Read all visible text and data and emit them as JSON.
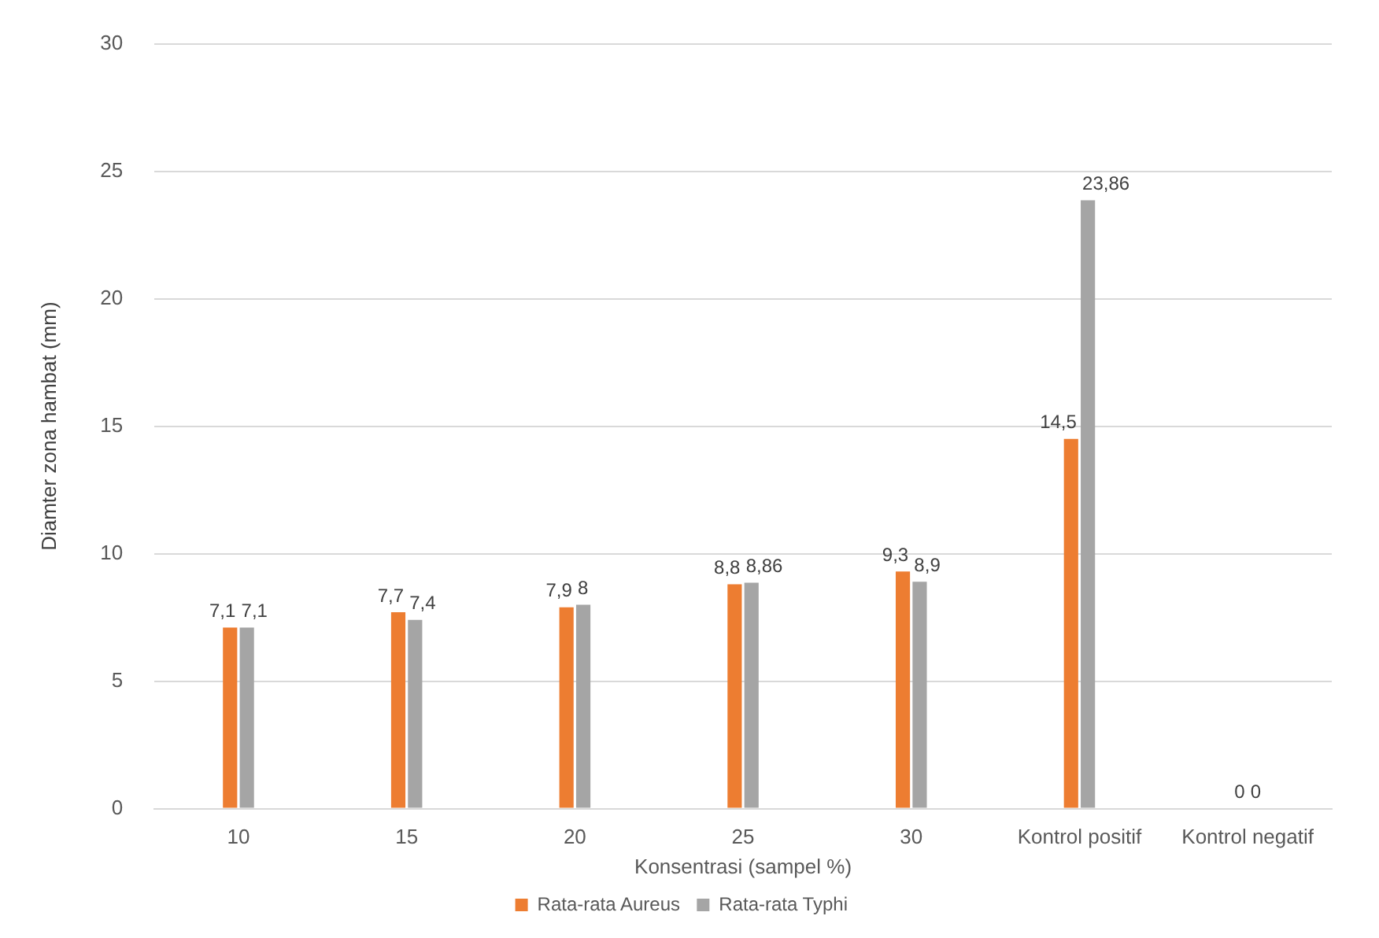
{
  "chart_data": {
    "type": "bar",
    "xlabel": "Konsentrasi (sampel %)",
    "ylabel": "Diamter zona hambat (mm)",
    "categories": [
      "10",
      "15",
      "20",
      "25",
      "30",
      "Kontrol positif",
      "Kontrol negatif"
    ],
    "series": [
      {
        "name": "Rata-rata Aureus",
        "color": "#ed7d31",
        "values": [
          7.1,
          7.7,
          7.9,
          8.8,
          9.3,
          14.5,
          0
        ],
        "value_labels": [
          "7,1",
          "7,7",
          "7,9",
          "8,8",
          "9,3",
          "14,5",
          "0"
        ]
      },
      {
        "name": "Rata-rata Typhi",
        "color": "#a5a5a5",
        "values": [
          7.1,
          7.4,
          8,
          8.86,
          8.9,
          23.86,
          0
        ],
        "value_labels": [
          "7,1",
          "7,4",
          "8",
          "8,86",
          "8,9",
          "23,86",
          "0"
        ]
      }
    ],
    "ylim": [
      0,
      30
    ],
    "yticks": [
      0,
      5,
      10,
      15,
      20,
      25,
      30
    ],
    "grid": "y",
    "legend": "bottom"
  }
}
